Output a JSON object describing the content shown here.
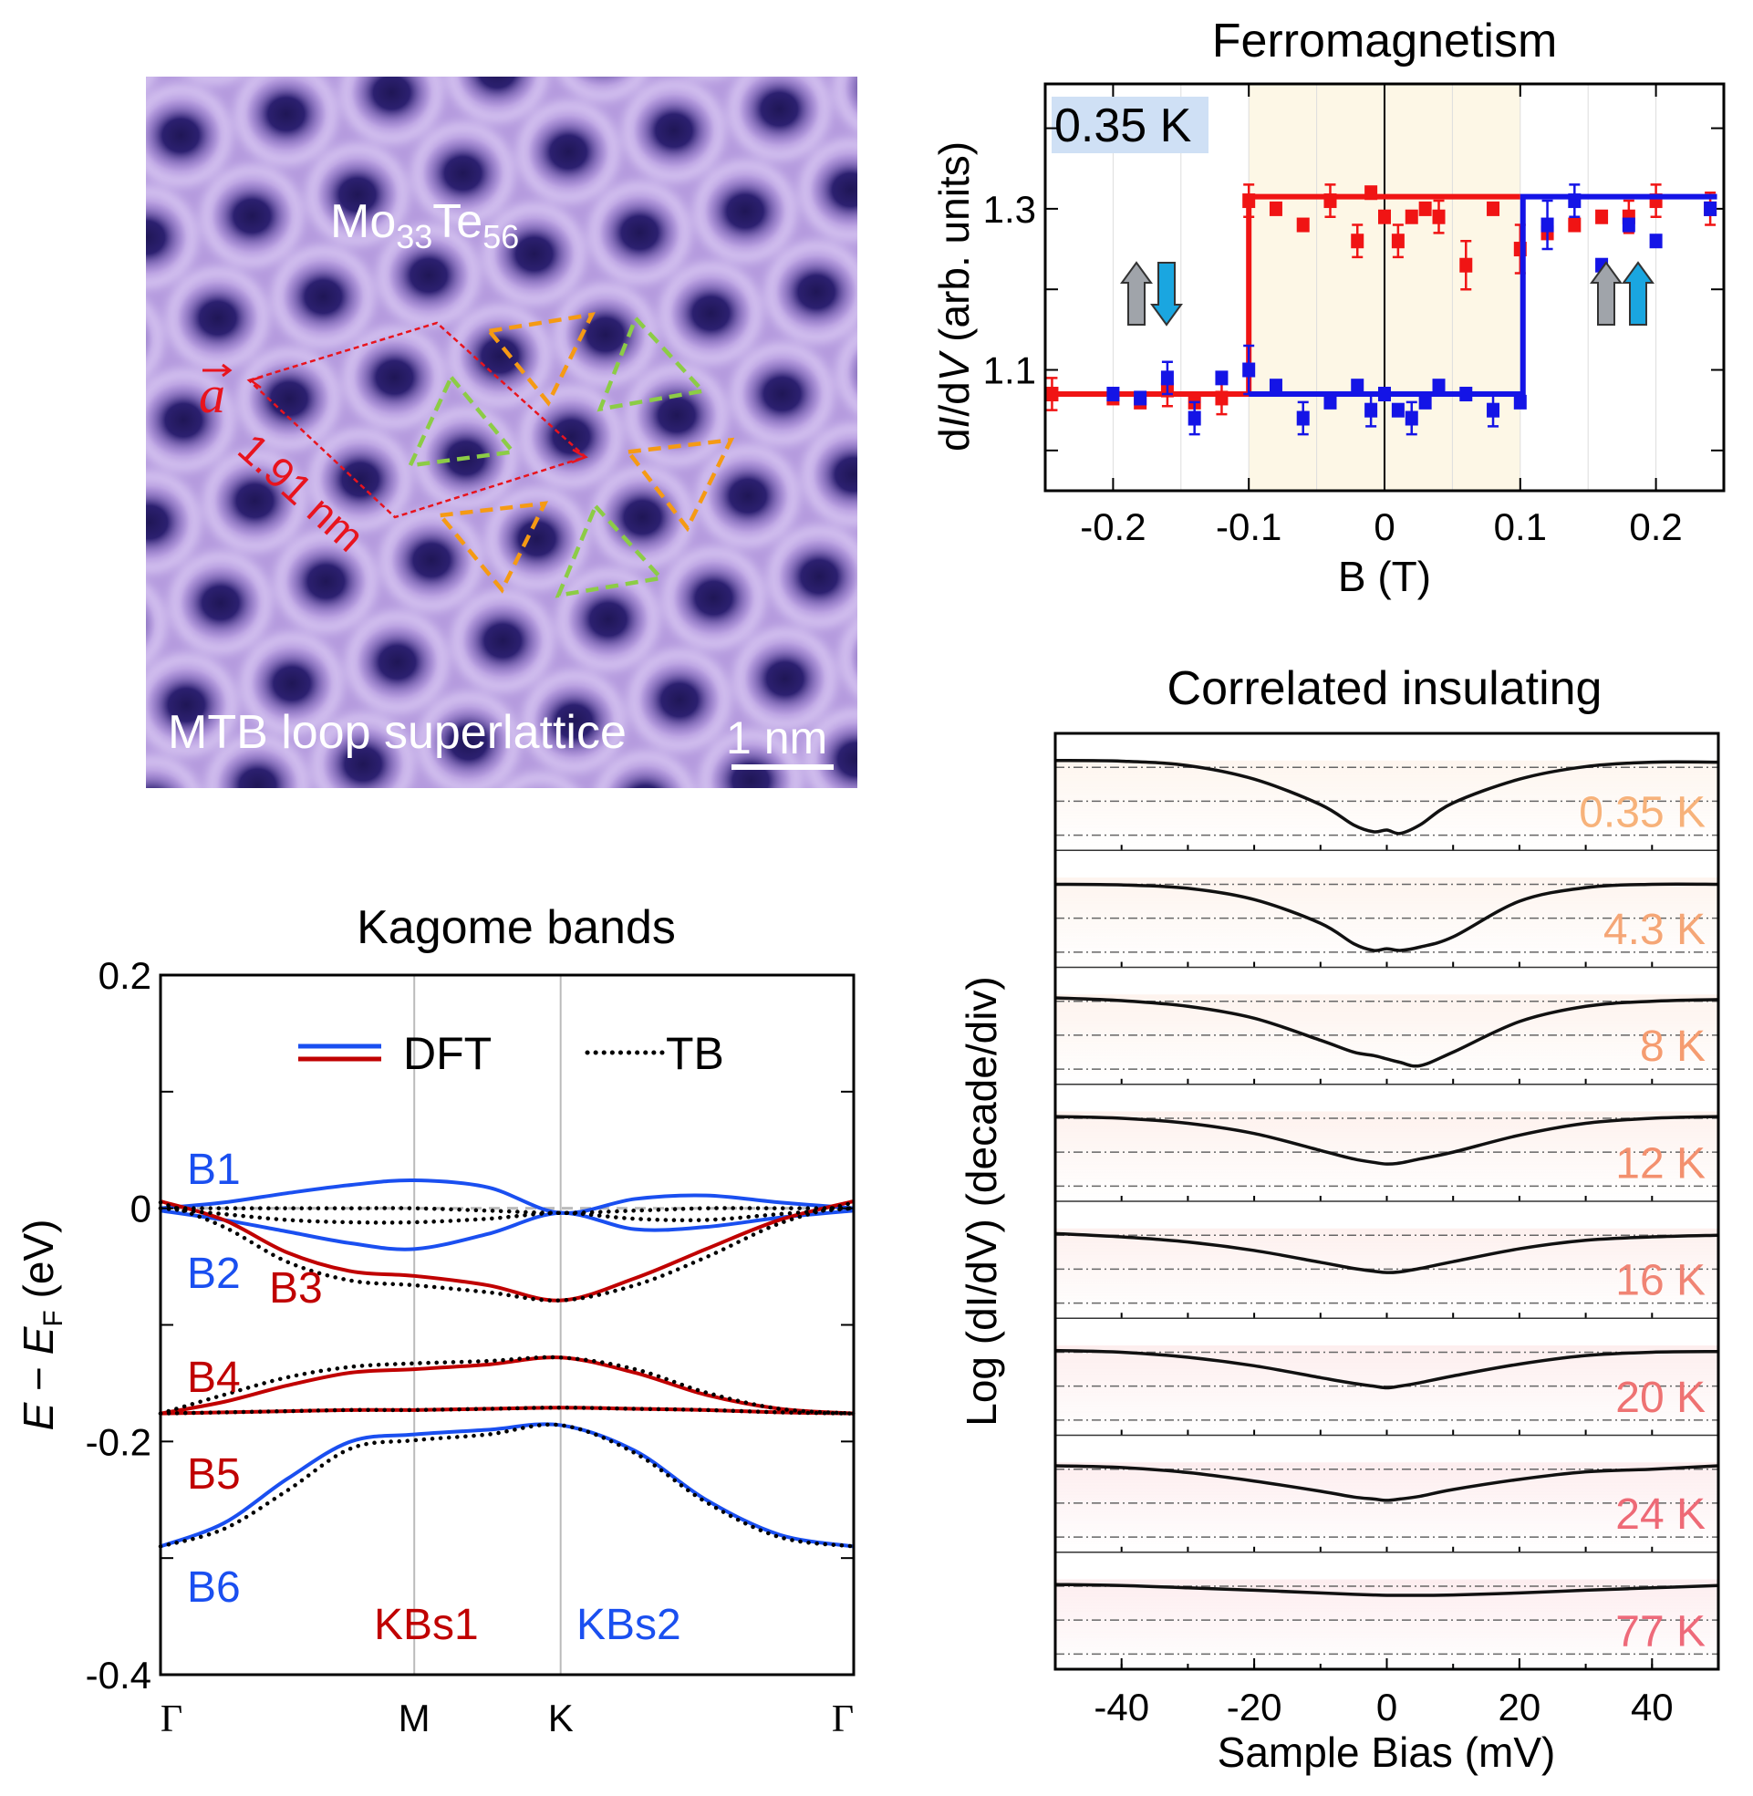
{
  "stm": {
    "formula_el1": "Mo",
    "formula_sub1": "33",
    "formula_el2": "Te",
    "formula_sub2": "56",
    "caption": "MTB loop superlattice",
    "scale_bar": "1 nm",
    "vector_label": "a",
    "lattice_constant": "1.91 nm",
    "colors": {
      "base": "#b49ade",
      "hole": "#241a5e",
      "vector": "#e8141e",
      "triangle_a": "#f59a14",
      "triangle_b": "#8ccc46"
    }
  },
  "chart_data": [
    {
      "type": "scatter",
      "title": "Ferromagnetism",
      "xlabel": "B (T)",
      "ylabel_parts": [
        "d",
        "I",
        "/d",
        "V",
        " (arb. units)"
      ],
      "annotation": "0.35 K",
      "xlim": [
        -0.25,
        0.25
      ],
      "ylim": [
        0.95,
        1.455
      ],
      "xticks": [
        -0.2,
        -0.1,
        0,
        0.1,
        0.2
      ],
      "xtick_labels": [
        "-0.2",
        "-0.1",
        "0",
        "0.1",
        "0.2"
      ],
      "yticks": [
        1.0,
        1.1,
        1.2,
        1.3,
        1.4
      ],
      "ytick_labels": {
        "1.1": "1.1",
        "1.3": "1.3"
      },
      "shaded_range": [
        -0.1,
        0.1
      ],
      "shade_color": "#fdf7e6",
      "annotation_bg": "#cfe0f5",
      "arrows": [
        {
          "B": -0.18,
          "spins": [
            "up-gray",
            "down-cyan"
          ]
        },
        {
          "B": 0.175,
          "spins": [
            "up-gray",
            "up-cyan"
          ]
        }
      ],
      "series": [
        {
          "color": "#f01414",
          "step": [
            [
              -0.245,
              1.07
            ],
            [
              -0.1,
              1.07
            ],
            [
              -0.1,
              1.315
            ],
            [
              0.1,
              1.315
            ]
          ],
          "points": [
            [
              -0.245,
              1.07,
              0.02
            ],
            [
              -0.2,
              1.065,
              0
            ],
            [
              -0.18,
              1.06,
              0
            ],
            [
              -0.16,
              1.075,
              0.02
            ],
            [
              -0.14,
              1.06,
              0
            ],
            [
              -0.12,
              1.065,
              0.02
            ],
            [
              -0.1,
              1.31,
              0.02
            ],
            [
              -0.08,
              1.3,
              0
            ],
            [
              -0.06,
              1.28,
              0
            ],
            [
              -0.04,
              1.31,
              0.02
            ],
            [
              -0.02,
              1.26,
              0.02
            ],
            [
              -0.01,
              1.32,
              0
            ],
            [
              0,
              1.29,
              0
            ],
            [
              0.01,
              1.26,
              0.02
            ],
            [
              0.02,
              1.29,
              0
            ],
            [
              0.03,
              1.3,
              0
            ],
            [
              0.04,
              1.29,
              0.02
            ],
            [
              0.06,
              1.23,
              0.03
            ],
            [
              0.08,
              1.3,
              0
            ],
            [
              0.1,
              1.25,
              0.03
            ],
            [
              0.12,
              1.27,
              0
            ],
            [
              0.14,
              1.28,
              0
            ],
            [
              0.16,
              1.29,
              0
            ],
            [
              0.18,
              1.29,
              0.02
            ],
            [
              0.2,
              1.31,
              0.02
            ],
            [
              0.24,
              1.3,
              0.02
            ]
          ]
        },
        {
          "color": "#1414e6",
          "step": [
            [
              -0.1,
              1.07
            ],
            [
              0.102,
              1.07
            ],
            [
              0.102,
              1.315
            ],
            [
              0.245,
              1.315
            ]
          ],
          "points": [
            [
              -0.2,
              1.07,
              0
            ],
            [
              -0.18,
              1.065,
              0
            ],
            [
              -0.16,
              1.09,
              0.02
            ],
            [
              -0.14,
              1.04,
              0.02
            ],
            [
              -0.12,
              1.09,
              0
            ],
            [
              -0.1,
              1.1,
              0.03
            ],
            [
              -0.08,
              1.08,
              0
            ],
            [
              -0.06,
              1.04,
              0.02
            ],
            [
              -0.04,
              1.06,
              0
            ],
            [
              -0.02,
              1.08,
              0
            ],
            [
              -0.01,
              1.05,
              0.02
            ],
            [
              0,
              1.07,
              0
            ],
            [
              0.01,
              1.05,
              0
            ],
            [
              0.02,
              1.04,
              0.02
            ],
            [
              0.03,
              1.06,
              0
            ],
            [
              0.04,
              1.08,
              0
            ],
            [
              0.06,
              1.07,
              0
            ],
            [
              0.08,
              1.05,
              0.02
            ],
            [
              0.1,
              1.06,
              0
            ],
            [
              0.12,
              1.28,
              0.03
            ],
            [
              0.14,
              1.31,
              0.02
            ],
            [
              0.16,
              1.23,
              0
            ],
            [
              0.18,
              1.28,
              0
            ],
            [
              0.2,
              1.26,
              0
            ],
            [
              0.24,
              1.3,
              0
            ]
          ]
        }
      ]
    },
    {
      "type": "line",
      "title": "Kagome bands",
      "ylabel_parts": [
        "E",
        " − ",
        "E",
        "F",
        " (eV)"
      ],
      "ylim": [
        -0.4,
        0.2
      ],
      "yticks": [
        -0.4,
        -0.3,
        -0.2,
        -0.1,
        0,
        0.1,
        0.2
      ],
      "ytick_labels": {
        "-0.4": "-0.4",
        "-0.2": "-0.2",
        "0": "0",
        "0.2": "0.2"
      },
      "kpath": [
        0,
        1,
        1.577,
        2.732
      ],
      "kpath_labels": [
        "Γ",
        "M",
        "K",
        "Γ"
      ],
      "k": [
        0,
        0.25,
        0.5,
        0.75,
        1,
        1.29,
        1.577,
        1.87,
        2.15,
        2.44,
        2.732
      ],
      "legend": {
        "dft": "DFT",
        "tb": "TB"
      },
      "colors": {
        "blue": "#1a4ff0",
        "red": "#c00000"
      },
      "dft": [
        {
          "name": "B1",
          "color": "blue",
          "values": [
            0,
            0.005,
            0.013,
            0.02,
            0.024,
            0.018,
            -0.004,
            0.008,
            0.011,
            0.005,
            0
          ]
        },
        {
          "name": "B2",
          "color": "blue",
          "values": [
            -0.002,
            -0.01,
            -0.02,
            -0.03,
            -0.035,
            -0.022,
            -0.004,
            -0.018,
            -0.016,
            -0.008,
            -0.002
          ]
        },
        {
          "name": "B3",
          "color": "red",
          "values": [
            0.006,
            -0.01,
            -0.038,
            -0.054,
            -0.058,
            -0.066,
            -0.079,
            -0.06,
            -0.035,
            -0.01,
            0.006
          ]
        },
        {
          "name": "B4",
          "color": "red",
          "values": [
            -0.176,
            -0.166,
            -0.152,
            -0.141,
            -0.138,
            -0.134,
            -0.128,
            -0.141,
            -0.16,
            -0.172,
            -0.176
          ]
        },
        {
          "name": "B5",
          "color": "red",
          "values": [
            -0.176,
            -0.175,
            -0.174,
            -0.173,
            -0.173,
            -0.172,
            -0.171,
            -0.172,
            -0.173,
            -0.175,
            -0.176
          ]
        },
        {
          "name": "B6",
          "color": "blue",
          "values": [
            -0.29,
            -0.27,
            -0.232,
            -0.2,
            -0.194,
            -0.19,
            -0.186,
            -0.208,
            -0.25,
            -0.28,
            -0.29
          ]
        }
      ],
      "tb": [
        [
          0,
          0,
          0,
          0,
          0,
          -0.002,
          -0.004,
          -0.002,
          0,
          0,
          0
        ],
        [
          0,
          -0.005,
          -0.01,
          -0.012,
          -0.012,
          -0.009,
          -0.004,
          -0.009,
          -0.01,
          -0.005,
          0
        ],
        [
          0.005,
          -0.016,
          -0.046,
          -0.062,
          -0.066,
          -0.072,
          -0.079,
          -0.066,
          -0.042,
          -0.013,
          0.005
        ],
        [
          -0.176,
          -0.16,
          -0.145,
          -0.136,
          -0.133,
          -0.131,
          -0.128,
          -0.138,
          -0.158,
          -0.172,
          -0.176
        ],
        [
          -0.176,
          -0.175,
          -0.174,
          -0.173,
          -0.173,
          -0.172,
          -0.171,
          -0.172,
          -0.173,
          -0.175,
          -0.176
        ],
        [
          -0.29,
          -0.275,
          -0.242,
          -0.206,
          -0.199,
          -0.194,
          -0.186,
          -0.21,
          -0.252,
          -0.282,
          -0.29
        ]
      ],
      "annotations": [
        {
          "text": "KBs1",
          "color": "red"
        },
        {
          "text": "KBs2",
          "color": "blue"
        }
      ]
    },
    {
      "type": "line",
      "title": "Correlated insulating",
      "xlabel": "Sample Bias (mV)",
      "ylabel": "Log (dI/dV) (decade/div)",
      "xlim": [
        -50,
        50
      ],
      "xticks": [
        -40,
        -20,
        0,
        20,
        40
      ],
      "xtick_labels": [
        "-40",
        "-20",
        "0",
        "20",
        "40"
      ],
      "bias": [
        -50,
        -40,
        -30,
        -20,
        -10,
        -5,
        -2,
        0,
        2,
        5,
        10,
        20,
        30,
        40,
        50
      ],
      "series": [
        {
          "name": "0.35 K",
          "color": "#f7b27a",
          "values": [
            0.2,
            0.18,
            0.05,
            -0.35,
            -1.1,
            -1.7,
            -1.9,
            -1.85,
            -1.95,
            -1.7,
            -1.05,
            -0.35,
            0.02,
            0.15,
            0.15
          ]
        },
        {
          "name": "4.3 K",
          "color": "#f5a676",
          "values": [
            0,
            -0.02,
            -0.12,
            -0.45,
            -1.15,
            -1.75,
            -1.95,
            -1.9,
            -1.95,
            -1.85,
            -1.55,
            -0.5,
            -0.1,
            0,
            0
          ]
        },
        {
          "name": "8 K",
          "color": "#f59c70",
          "values": [
            0.1,
            0.02,
            -0.15,
            -0.5,
            -1.15,
            -1.5,
            -1.6,
            -1.7,
            -1.8,
            -1.9,
            -1.5,
            -0.6,
            -0.15,
            0,
            0.05
          ]
        },
        {
          "name": "12 K",
          "color": "#f3906e",
          "values": [
            0.05,
            0,
            -0.15,
            -0.45,
            -0.95,
            -1.2,
            -1.3,
            -1.35,
            -1.32,
            -1.2,
            -1.0,
            -0.5,
            -0.15,
            0,
            0.05
          ]
        },
        {
          "name": "16 K",
          "color": "#f08474",
          "values": [
            0.05,
            -0.05,
            -0.2,
            -0.45,
            -0.8,
            -0.98,
            -1.06,
            -1.1,
            -1.08,
            -0.98,
            -0.78,
            -0.4,
            -0.15,
            -0.05,
            0
          ]
        },
        {
          "name": "20 K",
          "color": "#ee7272",
          "values": [
            0.05,
            0,
            -0.15,
            -0.4,
            -0.75,
            -0.92,
            -1.0,
            -1.05,
            -1.0,
            -0.9,
            -0.7,
            -0.35,
            -0.1,
            0,
            0.02
          ]
        },
        {
          "name": "24 K",
          "color": "#ee6a76",
          "values": [
            0.1,
            0.05,
            -0.1,
            -0.35,
            -0.65,
            -0.82,
            -0.88,
            -0.92,
            -0.88,
            -0.8,
            -0.6,
            -0.3,
            -0.08,
            0,
            0.1
          ]
        },
        {
          "name": "77 K",
          "color": "#ee6a7a",
          "values": [
            0.05,
            0.02,
            -0.05,
            -0.12,
            -0.2,
            -0.24,
            -0.26,
            -0.27,
            -0.27,
            -0.27,
            -0.26,
            -0.2,
            -0.12,
            -0.05,
            0.02
          ]
        }
      ]
    }
  ]
}
